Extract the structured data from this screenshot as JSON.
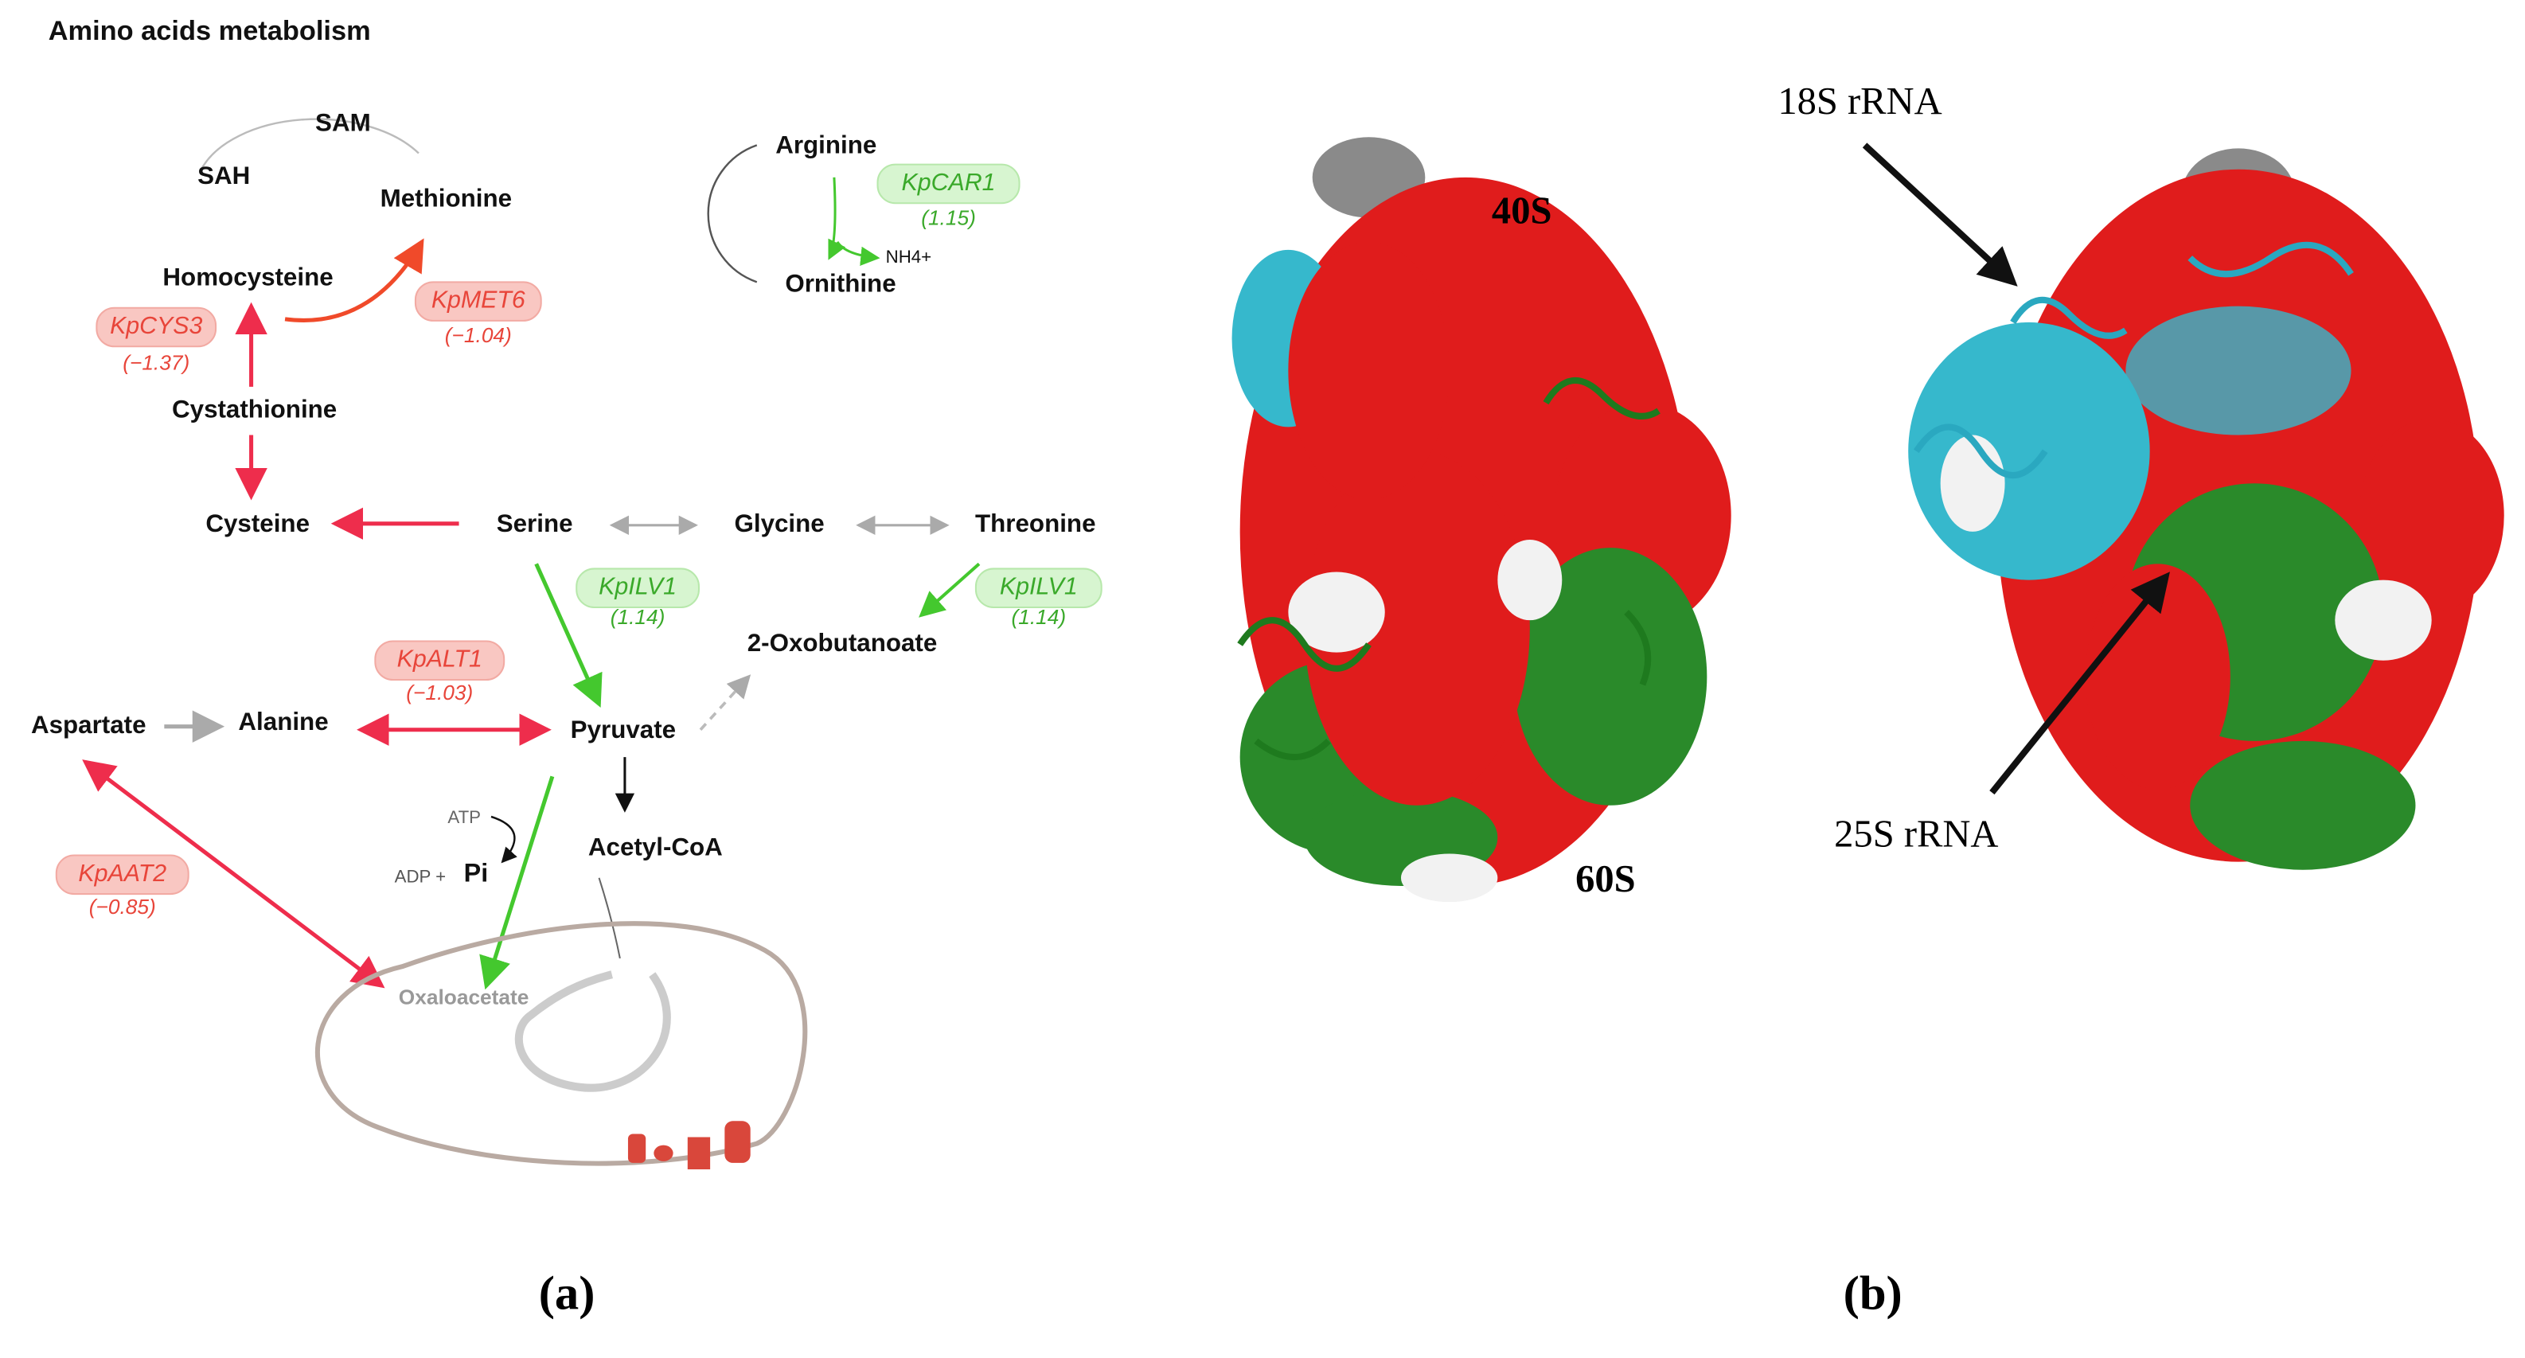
{
  "panel_a": {
    "title": "Amino acids metabolism",
    "nodes": [
      "SAM",
      "SAH",
      "Methionine",
      "Homocysteine",
      "Cystathionine",
      "Cysteine",
      "Serine",
      "Glycine",
      "Threonine",
      "Arginine",
      "Ornithine",
      "2-Oxobutanoate",
      "Aspartate",
      "Alanine",
      "Pyruvate",
      "Acetyl-CoA",
      "Oxaloacetate"
    ],
    "cofactors": [
      "NH4+",
      "ATP",
      "ADP +",
      "Pi"
    ],
    "enzymes": [
      {
        "name": "KpCYS3",
        "value": "(−1.37)"
      },
      {
        "name": "KpMET6",
        "value": "(−1.04)"
      },
      {
        "name": "KpCAR1",
        "value": "(1.15)"
      },
      {
        "name": "KpILV1",
        "value": "(1.14)"
      },
      {
        "name": "KpILV1",
        "value": "(1.14)"
      },
      {
        "name": "KpALT1",
        "value": "(−1.03)"
      },
      {
        "name": "KpAAT2",
        "value": "(−0.85)"
      }
    ]
  },
  "panel_b": {
    "labels": [
      "40S",
      "60S",
      "18S rRNA",
      "25S rRNA"
    ]
  },
  "captions": [
    "(a)",
    "(b)"
  ]
}
